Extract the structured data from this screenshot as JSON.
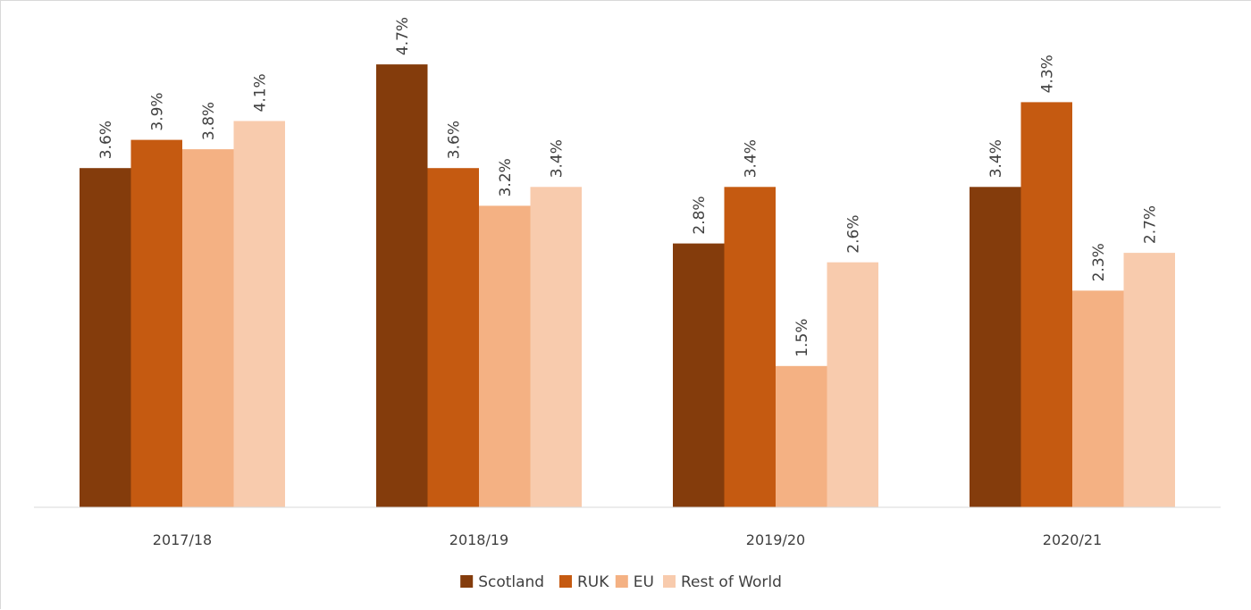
{
  "chart_data": {
    "type": "bar",
    "categories": [
      "2017/18",
      "2018/19",
      "2019/20",
      "2020/21"
    ],
    "series": [
      {
        "name": "Scotland",
        "color": "#843c0c",
        "values": [
          3.6,
          4.7,
          2.8,
          3.4
        ],
        "labels": [
          "3.6%",
          "4.7%",
          "2.8%",
          "3.4%"
        ]
      },
      {
        "name": "RUK",
        "color": "#c55a11",
        "values": [
          3.9,
          3.6,
          3.4,
          4.3
        ],
        "labels": [
          "3.9%",
          "3.6%",
          "3.4%",
          "4.3%"
        ]
      },
      {
        "name": "EU",
        "color": "#f4b183",
        "values": [
          3.8,
          3.2,
          1.5,
          2.3
        ],
        "labels": [
          "3.8%",
          "3.2%",
          "1.5%",
          "2.3%"
        ]
      },
      {
        "name": "Rest of World",
        "color": "#f8cbad",
        "values": [
          4.1,
          3.4,
          2.6,
          2.7
        ],
        "labels": [
          "4.1%",
          "3.4%",
          "2.6%",
          "2.7%"
        ]
      }
    ],
    "ylim": [
      0,
      5.0
    ],
    "grid": false,
    "legend": "bottom"
  }
}
